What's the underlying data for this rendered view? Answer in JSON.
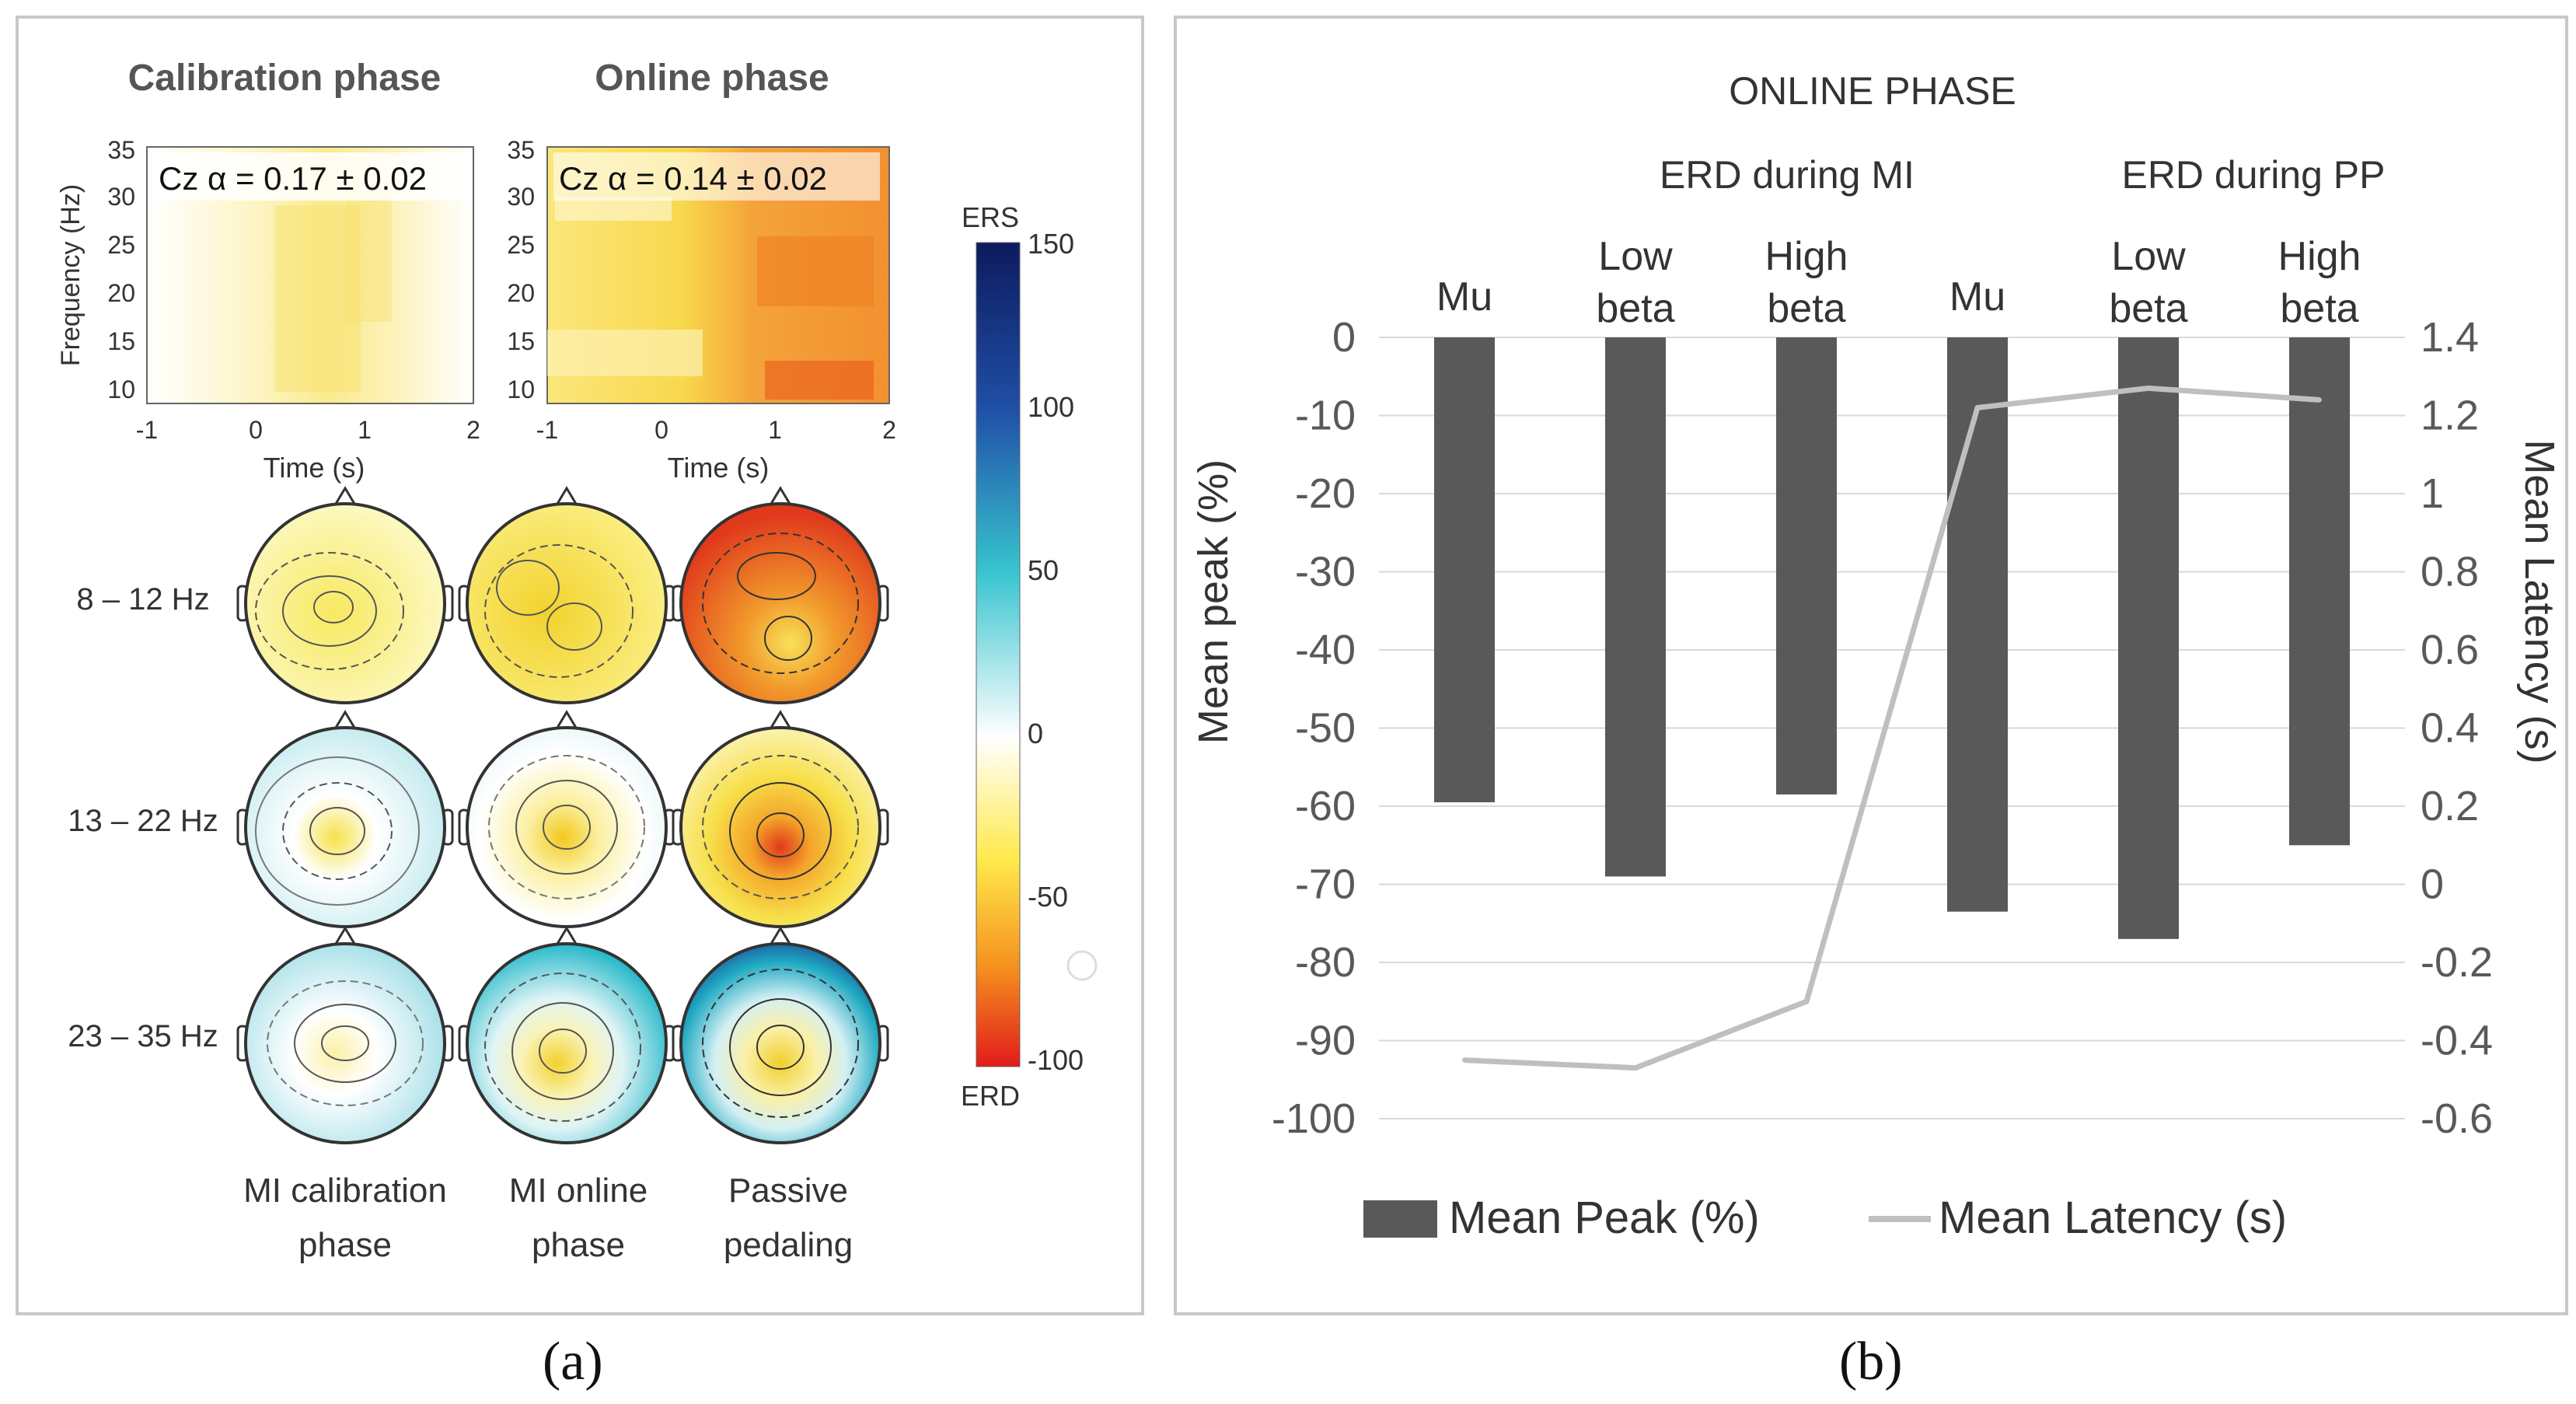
{
  "captions": {
    "a": "(a)",
    "b": "(b)"
  },
  "panel_a": {
    "calibration_title": "Calibration phase",
    "online_title": "Online phase",
    "cal_annotation": "Cz α = 0.17 ± 0.02",
    "onl_annotation": "Cz α = 0.14 ± 0.02",
    "freq_label": "Frequency (Hz)",
    "time_label": "Time (s)",
    "freq_ticks": [
      "35",
      "30",
      "25",
      "20",
      "15",
      "10"
    ],
    "time_ticks": [
      "-1",
      "0",
      "1",
      "2"
    ],
    "band_labels": [
      "8 – 12 Hz",
      "13 – 22 Hz",
      "23 – 35 Hz"
    ],
    "condition_labels": [
      {
        "line1": "MI calibration",
        "line2": "phase"
      },
      {
        "line1": "MI online",
        "line2": "phase"
      },
      {
        "line1": "Passive",
        "line2": "pedaling"
      }
    ],
    "colorbar": {
      "top_label": "ERS",
      "bottom_label": "ERD",
      "ticks": [
        "150",
        "100",
        "50",
        "0",
        "-50",
        "-100"
      ]
    }
  },
  "chart_data": {
    "type": "bar",
    "title": "ONLINE PHASE",
    "group_labels": [
      "ERD during MI",
      "ERD during PP"
    ],
    "categories": [
      {
        "line1": "Mu",
        "line2": ""
      },
      {
        "line1": "Low",
        "line2": "beta"
      },
      {
        "line1": "High",
        "line2": "beta"
      },
      {
        "line1": "Mu",
        "line2": ""
      },
      {
        "line1": "Low",
        "line2": "beta"
      },
      {
        "line1": "High",
        "line2": "beta"
      }
    ],
    "series": [
      {
        "name": "Mean Peak  (%)",
        "type": "bar",
        "axis": "left",
        "color": "#595959",
        "values": [
          -59.5,
          -69,
          -58.5,
          -73.5,
          -77,
          -65
        ]
      },
      {
        "name": "Mean Latency (s)",
        "type": "line",
        "axis": "right",
        "color": "#bfbfbf",
        "values": [
          -0.45,
          -0.47,
          -0.3,
          1.22,
          1.27,
          1.24
        ]
      }
    ],
    "ylabel": "Mean peak (%)",
    "y2label": "Mean Latency (s)",
    "ylim": [
      -100,
      0
    ],
    "y2lim": [
      -0.6,
      1.4
    ],
    "yticks": [
      "0",
      "-10",
      "-20",
      "-30",
      "-40",
      "-50",
      "-60",
      "-70",
      "-80",
      "-90",
      "-100"
    ],
    "y2ticks": [
      "1.4",
      "1.2",
      "1",
      "0.8",
      "0.6",
      "0.4",
      "0.2",
      "0",
      "-0.2",
      "-0.4",
      "-0.6"
    ],
    "legend": [
      "Mean Peak  (%)",
      "Mean Latency (s)"
    ],
    "legend_position": "bottom"
  }
}
